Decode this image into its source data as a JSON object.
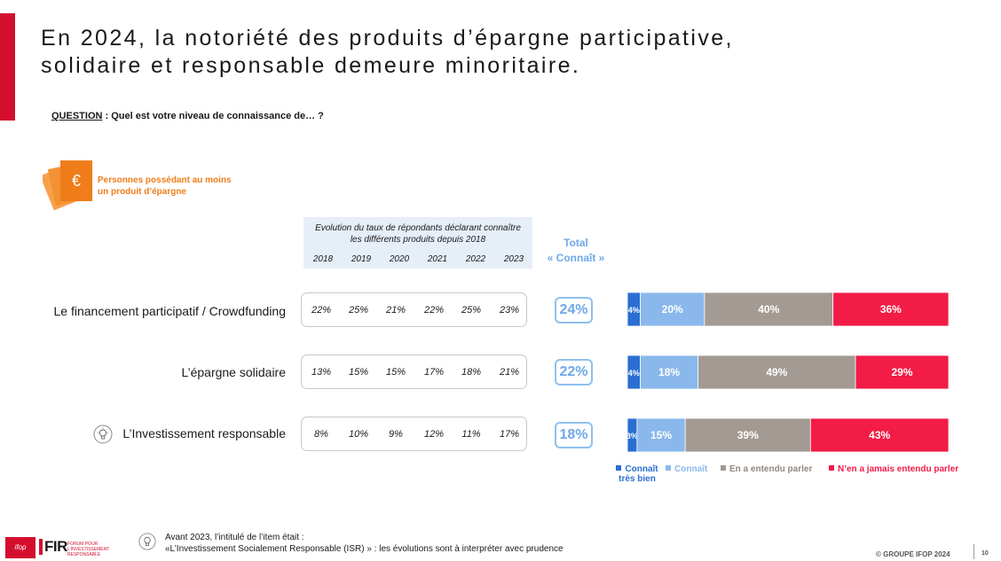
{
  "title": {
    "line1": "En 2024, la notoriété des produits d’épargne participative,",
    "line2": "solidaire et responsable demeure minoritaire."
  },
  "question": {
    "label": "QUESTION",
    "text": " : Quel est votre niveau de connaissance de… ?"
  },
  "population": {
    "icon": "euro-cards-icon",
    "icon_symbol": "€",
    "line1": "Personnes possédant au moins",
    "line2": "un produit d’épargne"
  },
  "evolution": {
    "caption_line1": "Evolution du taux de répondants déclarant connaître",
    "caption_line2": "les différents produits depuis 2018",
    "years": [
      "2018",
      "2019",
      "2020",
      "2021",
      "2022",
      "2023"
    ]
  },
  "total_header": {
    "line1": "Total",
    "line2": "« Connaît »"
  },
  "rows": [
    {
      "label": "Le financement participatif / Crowdfunding",
      "has_icon": false,
      "evolution": [
        "22%",
        "25%",
        "21%",
        "22%",
        "25%",
        "23%"
      ],
      "total": "24%"
    },
    {
      "label": "L’épargne solidaire",
      "has_icon": false,
      "evolution": [
        "13%",
        "15%",
        "15%",
        "17%",
        "18%",
        "21%"
      ],
      "total": "22%"
    },
    {
      "label": "L’Investissement responsable",
      "has_icon": true,
      "evolution": [
        "8%",
        "10%",
        "9%",
        "12%",
        "11%",
        "17%"
      ],
      "total": "18%"
    }
  ],
  "chart_data": {
    "type": "bar",
    "orientation": "horizontal",
    "stacked": true,
    "categories": [
      "Le financement participatif / Crowdfunding",
      "L’épargne solidaire",
      "L’Investissement responsable"
    ],
    "series": [
      {
        "name": "Connaît très bien",
        "color": "#2a6fd1",
        "values": [
          4,
          4,
          3
        ]
      },
      {
        "name": "Connaît",
        "color": "#8ab8ec",
        "values": [
          20,
          18,
          15
        ]
      },
      {
        "name": "En a entendu parler",
        "color": "#a39a93",
        "values": [
          40,
          49,
          39
        ]
      },
      {
        "name": "N’en a jamais entendu parler",
        "color": "#f21c46",
        "values": [
          36,
          29,
          43
        ]
      }
    ],
    "value_suffix": "%",
    "xlim": [
      0,
      100
    ],
    "legend_position": "bottom"
  },
  "legend": [
    {
      "label_line1": "Connaît",
      "label_line2": "très bien",
      "color": "#2a6fd1"
    },
    {
      "label_line1": "Connaît",
      "label_line2": "",
      "color": "#8ab8ec"
    },
    {
      "label_line1": "En a entendu parler",
      "label_line2": "",
      "color": "#a39a93"
    },
    {
      "label_line1": "N’en a jamais entendu parler",
      "label_line2": "",
      "color": "#f21c46"
    }
  ],
  "footnote": {
    "icon": "lightbulb-icon",
    "line1": "Avant 2023, l’intitulé de l’item était :",
    "line2": "«L’Investissement Socialement Responsable (ISR) » : les évolutions sont à interpréter avec prudence"
  },
  "logos": {
    "ifop": "ifop",
    "fir": "FIR",
    "fir_sub_line1": "FORUM POUR",
    "fir_sub_line2": "L’INVESTISSEMENT",
    "fir_sub_line3": "RESPONSABLE"
  },
  "footer": {
    "copyright": "© GROUPE IFOP 2024",
    "page": "10"
  }
}
